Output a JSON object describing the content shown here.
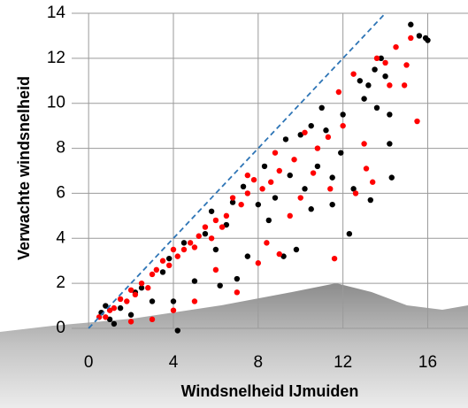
{
  "chart_data": {
    "type": "scatter",
    "x_label": "Windsnelheid IJmuiden",
    "y_label": "Verwachte windsnelheid",
    "xlim": [
      -0.8,
      17.9
    ],
    "ylim": [
      0,
      14
    ],
    "xticks": [
      0,
      4,
      8,
      12,
      16
    ],
    "yticks": [
      0,
      2,
      4,
      6,
      8,
      10,
      12,
      14
    ],
    "grid": true,
    "reference_line": {
      "x": [
        0,
        14
      ],
      "y": [
        0,
        14
      ],
      "color": "#2e75b6"
    },
    "series": [
      {
        "color": "#000000",
        "x": [
          15.2,
          15.6,
          16,
          15.9,
          13.8,
          13.5,
          14,
          13.2,
          14.2,
          13.6,
          14.2,
          14.3,
          12.3,
          13.3,
          12.5,
          11.9,
          11.2,
          10.8,
          11.5,
          12,
          11,
          10,
          9.5,
          10.2,
          10.5,
          9.8,
          9.2,
          8.5,
          8.8,
          8,
          7.5,
          7,
          6.5,
          6,
          5.5,
          5,
          4.5,
          4.2,
          4,
          3.5,
          3,
          2.5,
          2,
          1.5,
          1,
          0.6,
          7.3,
          6.8,
          5.8,
          12.8,
          13,
          9.3,
          8.3,
          3.8,
          2.2,
          1.2,
          0.8,
          10.5,
          6.2,
          11.5
        ],
        "values": [
          13.5,
          13,
          12.8,
          12.9,
          12,
          11.5,
          11.2,
          10.8,
          9.5,
          9.8,
          8.2,
          6.7,
          4.2,
          5.7,
          6.2,
          7.8,
          8.8,
          7.2,
          6.7,
          9.5,
          9.8,
          8.6,
          6.8,
          6.2,
          5.3,
          3.5,
          3.2,
          4.8,
          5.8,
          5.5,
          3.2,
          2.2,
          4.6,
          3.5,
          4.2,
          2.1,
          3.8,
          -0.1,
          1.2,
          2.5,
          1.2,
          1.8,
          0.6,
          0.9,
          0.4,
          0.7,
          6.3,
          5.6,
          5.2,
          11,
          10.2,
          8.4,
          7.2,
          3.1,
          1.6,
          0.2,
          1,
          9,
          1.9,
          5.5
        ]
      },
      {
        "color": "#ff0000",
        "x": [
          15.2,
          14.5,
          13.6,
          14,
          14.2,
          14.9,
          15,
          15.5,
          13,
          13.1,
          13.4,
          12.6,
          11.6,
          11.4,
          12,
          11.3,
          10.8,
          10.2,
          9.7,
          9,
          8.6,
          8.2,
          7.8,
          7.5,
          7.2,
          6.8,
          6.5,
          6.3,
          6,
          5.8,
          5.5,
          5.2,
          5,
          4.8,
          4.5,
          4.2,
          4,
          3.8,
          3.5,
          3.2,
          3,
          2.8,
          2.5,
          2.2,
          2,
          1.8,
          1.5,
          1.2,
          1,
          0.8,
          0.5,
          7,
          8,
          8.4,
          9,
          6,
          5,
          4,
          3,
          2,
          10,
          9.5,
          10.6,
          12.5,
          11.8,
          8.8,
          7.5
        ],
        "values": [
          12.9,
          12.5,
          12,
          11.8,
          10.8,
          10.8,
          11.7,
          9.2,
          8.2,
          7.1,
          6.5,
          6,
          3.1,
          6.2,
          9,
          8.5,
          8,
          8.7,
          7.5,
          7,
          6.5,
          6.2,
          6.6,
          6,
          5.5,
          5.8,
          5,
          4.5,
          4.8,
          4,
          4.5,
          4.1,
          3.6,
          3.8,
          3.5,
          3.2,
          3.5,
          2.8,
          3,
          2.6,
          2.4,
          1.8,
          2,
          1.5,
          1.7,
          1.2,
          1.3,
          0.9,
          0.8,
          0.5,
          0.5,
          1.6,
          2.9,
          3.8,
          3.3,
          2.6,
          1.2,
          0.8,
          0.4,
          0.3,
          5.8,
          5,
          6.9,
          11.3,
          10.5,
          7.8,
          6.8
        ]
      }
    ]
  }
}
